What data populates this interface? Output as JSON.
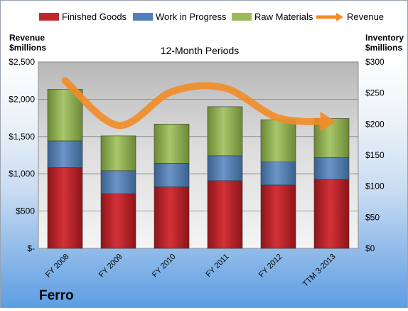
{
  "company": "Ferro",
  "chart_data": {
    "type": "bar",
    "stacked": true,
    "title": "12-Month Periods",
    "categories": [
      "FY 2008",
      "FY 2009",
      "FY 2010",
      "FY 2011",
      "FY 2012",
      "TTM 3-2013"
    ],
    "left_axis": {
      "label_line1": "Revenue",
      "label_line2": "$millions",
      "range": [
        0,
        2500
      ],
      "tick_labels": [
        "$-",
        "$500",
        "$1,000",
        "$1,500",
        "$2,000",
        "$2,500"
      ]
    },
    "right_axis": {
      "label_line1": "Inventory",
      "label_line2": "$millions",
      "range": [
        0,
        300
      ],
      "tick_labels": [
        "$0",
        "$50",
        "$100",
        "$150",
        "$200",
        "$250",
        "$300"
      ]
    },
    "legend_position": "top",
    "grid": true,
    "series": [
      {
        "name": "Finished Goods",
        "type": "bar",
        "axis": "right",
        "color": "#c0282d",
        "values": [
          130,
          88,
          99,
          109,
          102,
          111
        ]
      },
      {
        "name": "Work in Progress",
        "type": "bar",
        "axis": "right",
        "color": "#4f81bd",
        "values": [
          43,
          37,
          38,
          40,
          37,
          35
        ]
      },
      {
        "name": "Raw Materials",
        "type": "bar",
        "axis": "right",
        "color": "#9bbb59",
        "values": [
          83,
          56,
          63,
          79,
          68,
          63
        ]
      },
      {
        "name": "Revenue",
        "type": "line",
        "axis": "left",
        "color": "#f28c28",
        "values": [
          2250,
          1650,
          2100,
          2150,
          1750,
          1700
        ]
      }
    ]
  }
}
